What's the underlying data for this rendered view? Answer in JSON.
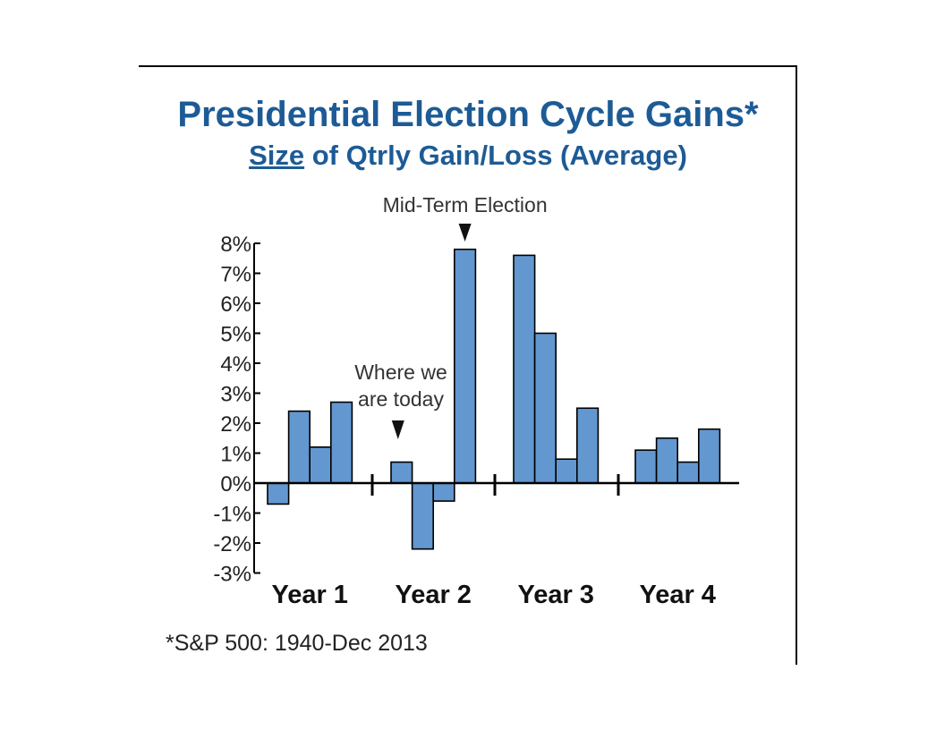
{
  "title": "Presidential Election Cycle Gains*",
  "subtitle": {
    "underlined": "Size",
    "rest": " of Qtrly Gain/Loss (Average)"
  },
  "footnote": "*S&P 500: 1940-Dec 2013",
  "colors": {
    "bar": "#6397d0",
    "title": "#1d5b96",
    "axis": "#000000"
  },
  "chart_data": {
    "type": "bar",
    "title": "Presidential Election Cycle Gains*",
    "subtitle": "Size of Qtrly Gain/Loss (Average)",
    "ylim": [
      -3,
      8
    ],
    "yticks": [
      "8%",
      "7%",
      "6%",
      "5%",
      "4%",
      "3%",
      "2%",
      "1%",
      "0%",
      "-1%",
      "-2%",
      "-3%"
    ],
    "groups": [
      {
        "label": "Year 1",
        "values": [
          -0.7,
          2.4,
          1.2,
          2.7
        ]
      },
      {
        "label": "Year 2",
        "values": [
          0.7,
          -2.2,
          -0.6,
          7.8
        ]
      },
      {
        "label": "Year 3",
        "values": [
          7.6,
          5.0,
          0.8,
          2.5
        ]
      },
      {
        "label": "Year 4",
        "values": [
          1.1,
          1.5,
          0.7,
          1.8
        ]
      }
    ],
    "annotations": [
      {
        "text": "Mid-Term Election",
        "group": 1,
        "quarter": 3
      },
      {
        "text": [
          "Where we",
          "are today"
        ],
        "group": 1,
        "quarter": 0
      }
    ],
    "grid": false,
    "legend": "none"
  }
}
